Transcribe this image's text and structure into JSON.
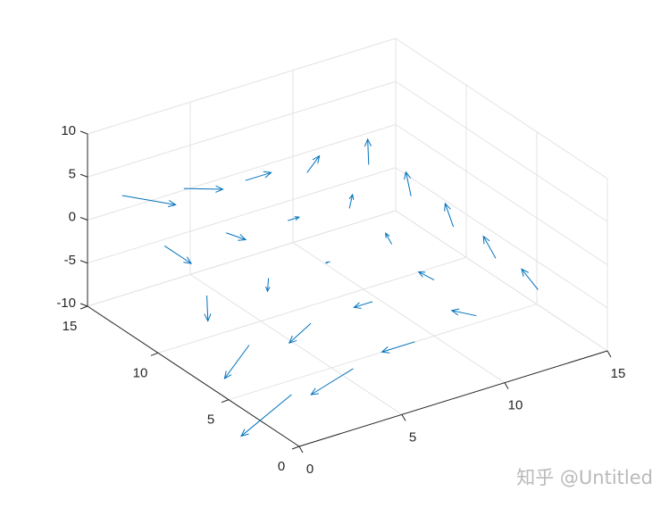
{
  "chart_data": {
    "type": "quiver3",
    "title": "",
    "xlabel": "",
    "ylabel": "",
    "zlabel": "",
    "xlim": [
      0,
      15
    ],
    "ylim": [
      0,
      15
    ],
    "zlim": [
      -10,
      10
    ],
    "xticks": [
      "0",
      "5",
      "10",
      "15"
    ],
    "yticks": [
      "0",
      "5",
      "10",
      "15"
    ],
    "zticks": [
      "-10",
      "-5",
      "0",
      "5",
      "10"
    ],
    "grid": true,
    "arrow_color": "#0072BD",
    "arrows": [
      [
        1,
        2,
        -6.9,
        -2.45,
        0,
        -3
      ],
      [
        1,
        5,
        -4.4,
        -1.2,
        0,
        -3
      ],
      [
        1,
        8,
        -1.9,
        0.05,
        0,
        -3
      ],
      [
        1,
        11,
        0.6,
        1.3,
        0,
        -3
      ],
      [
        1,
        14,
        3.2,
        2.6,
        0,
        -3
      ],
      [
        4,
        2,
        -6.1,
        -2.05,
        0,
        -1.5
      ],
      [
        4,
        5,
        -4.1,
        -1.05,
        0,
        -1.5
      ],
      [
        4,
        8,
        -2.1,
        -0.05,
        0,
        -1.5
      ],
      [
        4,
        11,
        -0.1,
        0.95,
        0,
        -1.5
      ],
      [
        4,
        14,
        1.8,
        1.9,
        0,
        -1.5
      ],
      [
        7,
        2,
        -5.2,
        -1.6,
        0,
        0
      ],
      [
        7,
        5,
        -3.8,
        -0.9,
        0,
        0
      ],
      [
        7,
        8,
        -2.4,
        -0.2,
        0,
        0
      ],
      [
        7,
        11,
        -0.9,
        0.55,
        0,
        0
      ],
      [
        7,
        14,
        0.5,
        1.25,
        0,
        0
      ],
      [
        10,
        2,
        -4.4,
        -1.2,
        0,
        1.5
      ],
      [
        10,
        5,
        -3.5,
        -0.75,
        0,
        1.5
      ],
      [
        10,
        8,
        -2.6,
        -0.3,
        0,
        1.5
      ],
      [
        10,
        11,
        -1.7,
        0.15,
        0,
        1.5
      ],
      [
        10,
        14,
        -0.8,
        0.6,
        0,
        1.5
      ],
      [
        13,
        2,
        -3.6,
        -0.8,
        0,
        3
      ],
      [
        13,
        5,
        -3.2,
        -0.6,
        0,
        3
      ],
      [
        13,
        8,
        -2.8,
        -0.4,
        0,
        3
      ],
      [
        13,
        11,
        -2.5,
        -0.25,
        0,
        3
      ],
      [
        13,
        14,
        -2.1,
        -0.05,
        0,
        3
      ]
    ]
  },
  "watermark": "知乎 @Untitled"
}
